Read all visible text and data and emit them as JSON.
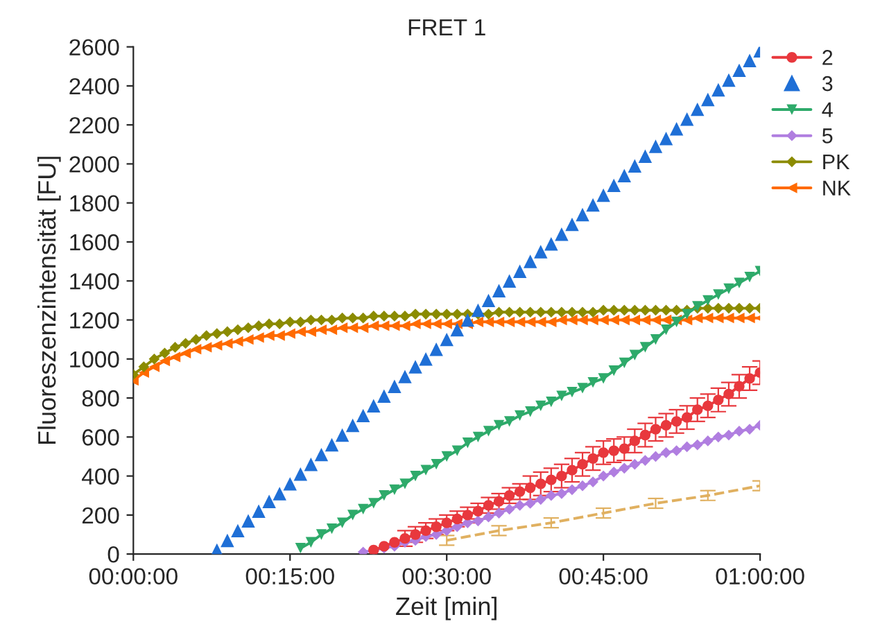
{
  "chart_data": {
    "type": "line",
    "title": "FRET 1",
    "xlabel": "Zeit [min]",
    "ylabel": "Fluoreszenzintensität [FU]",
    "xlim": [
      0,
      60
    ],
    "xticks": [
      {
        "value": 0,
        "label": "00:00:00"
      },
      {
        "value": 15,
        "label": "00:15:00"
      },
      {
        "value": 30,
        "label": "00:30:00"
      },
      {
        "value": 45,
        "label": "00:45:00"
      },
      {
        "value": 60,
        "label": "01:00:00"
      }
    ],
    "ylim": [
      0,
      2600
    ],
    "yticks": [
      0,
      200,
      400,
      600,
      800,
      1000,
      1200,
      1400,
      1600,
      1800,
      2000,
      2200,
      2400,
      2600
    ],
    "grid": false,
    "legend": "right",
    "series": [
      {
        "name": "2",
        "color": "#e8383d",
        "marker": "circle",
        "line_style": "solid",
        "x": [
          23,
          24,
          25,
          26,
          27,
          28,
          29,
          30,
          31,
          32,
          33,
          34,
          35,
          36,
          37,
          38,
          39,
          40,
          41,
          42,
          43,
          44,
          45,
          46,
          47,
          48,
          49,
          50,
          51,
          52,
          53,
          54,
          55,
          56,
          57,
          58,
          59,
          60
        ],
        "values": [
          20,
          40,
          60,
          80,
          100,
          120,
          140,
          160,
          180,
          200,
          220,
          250,
          270,
          300,
          320,
          340,
          360,
          380,
          400,
          430,
          460,
          490,
          520,
          530,
          540,
          580,
          610,
          640,
          660,
          680,
          700,
          740,
          760,
          790,
          820,
          860,
          900,
          930
        ],
        "errors": [
          null,
          null,
          null,
          40,
          40,
          40,
          40,
          40,
          40,
          40,
          40,
          40,
          40,
          40,
          40,
          60,
          60,
          60,
          60,
          60,
          60,
          60,
          60,
          60,
          60,
          60,
          60,
          60,
          60,
          60,
          60,
          60,
          60,
          60,
          60,
          60,
          60,
          60
        ]
      },
      {
        "name": "3",
        "type": "scatter",
        "color": "#1f6fd6",
        "marker": "triangle",
        "x": [
          8,
          9,
          10,
          11,
          12,
          13,
          14,
          15,
          16,
          17,
          18,
          19,
          20,
          21,
          22,
          23,
          24,
          25,
          26,
          27,
          28,
          29,
          30,
          31,
          32,
          33,
          34,
          35,
          36,
          37,
          38,
          39,
          40,
          41,
          42,
          43,
          44,
          45,
          46,
          47,
          48,
          49,
          50,
          51,
          52,
          53,
          54,
          55,
          56,
          57,
          58,
          59,
          60
        ],
        "values": [
          20,
          70,
          120,
          170,
          220,
          270,
          310,
          360,
          410,
          460,
          510,
          560,
          610,
          660,
          710,
          760,
          810,
          860,
          910,
          960,
          1000,
          1050,
          1100,
          1150,
          1200,
          1250,
          1300,
          1350,
          1400,
          1450,
          1500,
          1550,
          1590,
          1640,
          1690,
          1740,
          1790,
          1840,
          1890,
          1940,
          1990,
          2040,
          2090,
          2130,
          2180,
          2230,
          2280,
          2330,
          2380,
          2430,
          2480,
          2530,
          2580
        ]
      },
      {
        "name": "4",
        "color": "#2eaa6a",
        "marker": "triangle_down",
        "line_style": "solid",
        "x": [
          16,
          17,
          18,
          19,
          20,
          21,
          22,
          23,
          24,
          25,
          26,
          27,
          28,
          29,
          30,
          31,
          32,
          33,
          34,
          35,
          36,
          37,
          38,
          39,
          40,
          41,
          42,
          43,
          44,
          45,
          46,
          47,
          48,
          49,
          50,
          51,
          52,
          53,
          54,
          55,
          56,
          57,
          58,
          59,
          60
        ],
        "values": [
          30,
          60,
          100,
          130,
          160,
          200,
          230,
          260,
          300,
          330,
          360,
          400,
          430,
          460,
          500,
          530,
          570,
          600,
          630,
          660,
          680,
          710,
          730,
          760,
          780,
          810,
          830,
          850,
          880,
          900,
          940,
          980,
          1020,
          1060,
          1100,
          1150,
          1190,
          1230,
          1270,
          1300,
          1330,
          1360,
          1390,
          1420,
          1450
        ]
      },
      {
        "name": "5",
        "color": "#b07ee0",
        "marker": "diamond",
        "line_style": "solid",
        "x": [
          22,
          23,
          24,
          25,
          26,
          27,
          28,
          29,
          30,
          31,
          32,
          33,
          34,
          35,
          36,
          37,
          38,
          39,
          40,
          41,
          42,
          43,
          44,
          45,
          46,
          47,
          48,
          49,
          50,
          51,
          52,
          53,
          54,
          55,
          56,
          57,
          58,
          59,
          60
        ],
        "values": [
          10,
          20,
          30,
          40,
          60,
          70,
          90,
          100,
          120,
          140,
          160,
          170,
          190,
          210,
          230,
          250,
          260,
          280,
          300,
          310,
          330,
          350,
          370,
          400,
          420,
          440,
          460,
          480,
          500,
          520,
          530,
          550,
          560,
          580,
          600,
          610,
          630,
          640,
          660
        ]
      },
      {
        "name": "PK",
        "color": "#8b8b00",
        "marker": "diamond",
        "line_style": "solid",
        "x": [
          0,
          1,
          2,
          3,
          4,
          5,
          6,
          7,
          8,
          9,
          10,
          11,
          12,
          13,
          14,
          15,
          16,
          17,
          18,
          19,
          20,
          21,
          22,
          23,
          24,
          25,
          26,
          27,
          28,
          29,
          30,
          31,
          32,
          33,
          34,
          35,
          36,
          37,
          38,
          39,
          40,
          41,
          42,
          43,
          44,
          45,
          46,
          47,
          48,
          49,
          50,
          51,
          52,
          53,
          54,
          55,
          56,
          57,
          58,
          59,
          60
        ],
        "values": [
          920,
          960,
          1000,
          1030,
          1060,
          1080,
          1100,
          1120,
          1130,
          1140,
          1150,
          1160,
          1170,
          1180,
          1180,
          1190,
          1190,
          1200,
          1200,
          1200,
          1210,
          1210,
          1210,
          1220,
          1220,
          1220,
          1220,
          1230,
          1230,
          1230,
          1230,
          1230,
          1230,
          1230,
          1230,
          1240,
          1240,
          1240,
          1240,
          1240,
          1240,
          1240,
          1240,
          1240,
          1240,
          1250,
          1250,
          1250,
          1250,
          1250,
          1250,
          1250,
          1250,
          1250,
          1260,
          1260,
          1260,
          1260,
          1260,
          1260,
          1260
        ]
      },
      {
        "name": "NK",
        "color": "#ff6a00",
        "marker": "triangle_left",
        "line_style": "solid",
        "x": [
          0,
          1,
          2,
          3,
          4,
          5,
          6,
          7,
          8,
          9,
          10,
          11,
          12,
          13,
          14,
          15,
          16,
          17,
          18,
          19,
          20,
          21,
          22,
          23,
          24,
          25,
          26,
          27,
          28,
          29,
          30,
          31,
          32,
          33,
          34,
          35,
          36,
          37,
          38,
          39,
          40,
          41,
          42,
          43,
          44,
          45,
          46,
          47,
          48,
          49,
          50,
          51,
          52,
          53,
          54,
          55,
          56,
          57,
          58,
          59,
          60
        ],
        "values": [
          890,
          930,
          960,
          990,
          1010,
          1030,
          1050,
          1060,
          1070,
          1080,
          1090,
          1100,
          1110,
          1120,
          1120,
          1130,
          1140,
          1140,
          1150,
          1150,
          1160,
          1160,
          1160,
          1170,
          1170,
          1170,
          1170,
          1180,
          1180,
          1180,
          1180,
          1180,
          1180,
          1190,
          1190,
          1190,
          1190,
          1190,
          1190,
          1190,
          1190,
          1200,
          1200,
          1200,
          1200,
          1200,
          1200,
          1200,
          1200,
          1200,
          1200,
          1200,
          1200,
          1200,
          1210,
          1210,
          1210,
          1210,
          1210,
          1210,
          1210
        ]
      },
      {
        "color": "#e0b060",
        "marker": "none",
        "line_style": "dashed",
        "x": [
          30,
          35,
          40,
          45,
          50,
          55,
          60
        ],
        "values": [
          70,
          120,
          160,
          210,
          260,
          300,
          350
        ],
        "errors": [
          25,
          25,
          25,
          25,
          25,
          25,
          25
        ]
      }
    ]
  }
}
